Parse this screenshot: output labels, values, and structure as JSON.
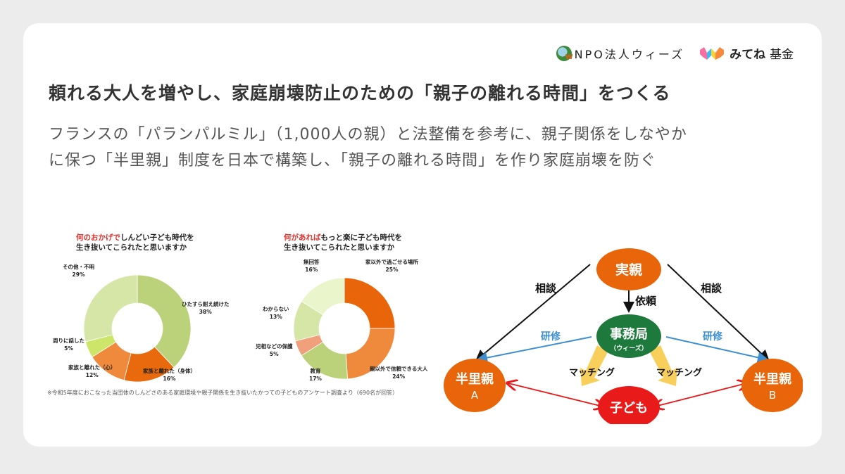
{
  "header": {
    "npo_logo_text": "NPO法人ウィーズ",
    "npo_logo_mark": "W",
    "fund_logo_text": "みてね",
    "fund_logo_suffix": "基金"
  },
  "title": "頼れる大人を増やし、家庭崩壊防止のための「親子の離れる時間」をつくる",
  "subtitle_lines": [
    "フランスの「パランパルミル」（1,000人の親）と法整備を参考に、親子関係をしなやか",
    "に保つ「半里親」制度を日本で構築し、「親子の離れる時間」を作り家庭崩壊を防ぐ"
  ],
  "chart_data": [
    {
      "type": "pie",
      "title_highlight": "何のおかげで",
      "title_rest": "しんどい子ども時代を",
      "title_line2": "生き抜いてこられたと思いますか",
      "categories": [
        "ひたすら耐え続けた",
        "家族と離れた（身体）",
        "家族と離れた（心）",
        "周りに話した",
        "その他・不明"
      ],
      "values": [
        38,
        16,
        12,
        5,
        29
      ],
      "labels": [
        "38%",
        "16%",
        "12%",
        "5%",
        "29%"
      ],
      "colors": [
        "#bcd27a",
        "#e86a0c",
        "#ef8a3c",
        "#cde66a",
        "#d6e6a6"
      ]
    },
    {
      "type": "pie",
      "title_highlight": "何があれば",
      "title_rest": "もっと楽に子ども時代を",
      "title_line2": "生き抜いてこられたと思いますか",
      "categories": [
        "家以外で過ごせる場所",
        "親以外で信頼できる大人",
        "教育",
        "児相などの保護",
        "わからない",
        "無回答"
      ],
      "values": [
        25,
        24,
        17,
        5,
        13,
        16
      ],
      "labels": [
        "25%",
        "24%",
        "17%",
        "5%",
        "13%",
        "16%"
      ],
      "colors": [
        "#e8650a",
        "#ef8a3c",
        "#bcd27a",
        "#f0a07a",
        "#d6e6a6",
        "#eaf5cc"
      ]
    }
  ],
  "footnote": "※令和5年度におこなった当団体のしんどさのある家庭環境や親子関係を生き抜いたかつての子どものアンケート調査より（690名が回答）",
  "diagram": {
    "nodes": {
      "birth_parent": "実親",
      "office": "事務局",
      "office_sub": "（ウィーズ）",
      "half_parent_a": "半里親",
      "half_parent_a_sub": "A",
      "half_parent_b": "半里親",
      "half_parent_b_sub": "B",
      "child": "子ども"
    },
    "edges": {
      "consult_left": "相談",
      "consult_right": "相談",
      "request": "依頼",
      "training_left": "研修",
      "training_right": "研修",
      "matching_left": "マッチング",
      "matching_right": "マッチング"
    },
    "colors": {
      "orange": "#e8650a",
      "green": "#1e7a3c",
      "red": "#e81a1a",
      "blue": "#3d8fd1",
      "yellow": "#f7cf5a"
    }
  }
}
